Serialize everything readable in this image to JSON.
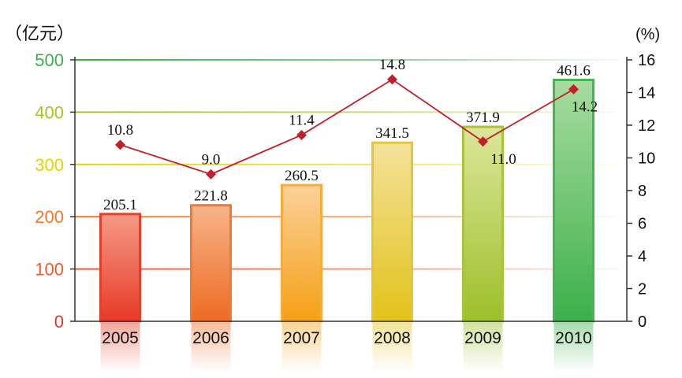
{
  "chart_data": {
    "type": "bar",
    "categories": [
      "2005",
      "2006",
      "2007",
      "2008",
      "2009",
      "2010"
    ],
    "left_axis": {
      "unit_label": "（亿元）",
      "ylim": [
        0,
        500
      ],
      "ticks": [
        {
          "value": 0,
          "label": "0",
          "color": "#e8322a"
        },
        {
          "value": 100,
          "label": "100",
          "color": "#ee5a30"
        },
        {
          "value": 200,
          "label": "200",
          "color": "#f07a2a"
        },
        {
          "value": 300,
          "label": "300",
          "color": "#e6d400"
        },
        {
          "value": 400,
          "label": "400",
          "color": "#a8c22a"
        },
        {
          "value": 500,
          "label": "500",
          "color": "#3cb04a"
        }
      ]
    },
    "right_axis": {
      "unit_label": "(%)",
      "ylim": [
        0,
        16
      ],
      "ticks": [
        "0",
        "2",
        "4",
        "6",
        "8",
        "10",
        "12",
        "14",
        "16"
      ]
    },
    "series": [
      {
        "type": "bar",
        "axis": "left",
        "values": [
          205.1,
          221.8,
          260.5,
          341.5,
          371.9,
          461.6
        ],
        "labels": [
          "205.1",
          "221.8",
          "260.5",
          "341.5",
          "371.9",
          "461.6"
        ],
        "colors": [
          {
            "top": "#f59a86",
            "bottom": "#e73a27",
            "edge": "#e0402c"
          },
          {
            "top": "#f7b48a",
            "bottom": "#ee6a22",
            "edge": "#ec7a3a"
          },
          {
            "top": "#fbd19a",
            "bottom": "#f5a014",
            "edge": "#f3ad3c"
          },
          {
            "top": "#f4e29a",
            "bottom": "#e2c21a",
            "edge": "#e3c73a"
          },
          {
            "top": "#dde69a",
            "bottom": "#9cc02a",
            "edge": "#a9c43a"
          },
          {
            "top": "#a8dca0",
            "bottom": "#3cb04a",
            "edge": "#48b452"
          }
        ]
      },
      {
        "type": "line",
        "axis": "right",
        "values": [
          10.8,
          9.0,
          11.4,
          14.8,
          11.0,
          14.2
        ],
        "labels": [
          "10.8",
          "9.0",
          "11.4",
          "14.8",
          "11.0",
          "14.2"
        ],
        "color": "#c0202a"
      }
    ],
    "gridlines": [
      {
        "value": 100,
        "color": "#ee5a30"
      },
      {
        "value": 200,
        "color": "#f07a2a"
      },
      {
        "value": 300,
        "color": "#e6d400"
      },
      {
        "value": 400,
        "color": "#a8c22a"
      },
      {
        "value": 500,
        "color": "#3cb04a"
      }
    ],
    "axis_color": "#333333"
  }
}
